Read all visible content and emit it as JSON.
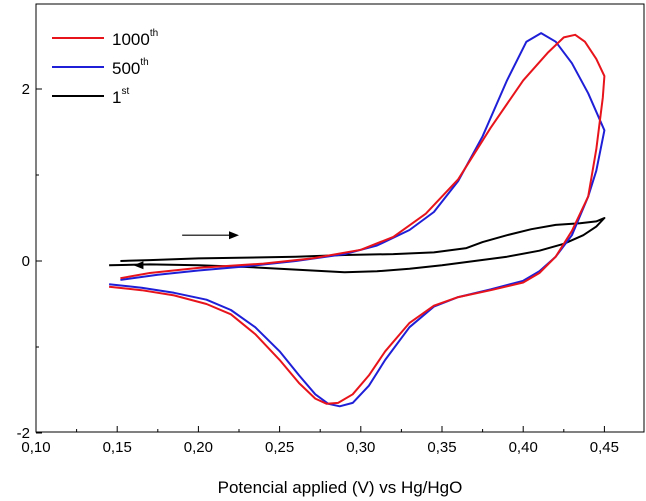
{
  "chart_data": {
    "type": "line",
    "title": "",
    "xlabel": "Potencial applied (V) vs Hg/HgO",
    "ylabel": "",
    "xlim": [
      0.1,
      0.46
    ],
    "ylim": [
      -2.0,
      2.75
    ],
    "x_ticks": [
      0.1,
      0.15,
      0.2,
      0.25,
      0.3,
      0.35,
      0.4,
      0.45
    ],
    "x_tick_labels": [
      "0,10",
      "0,15",
      "0,20",
      "0,25",
      "0,30",
      "0,35",
      "0,40",
      "0,45"
    ],
    "y_ticks": [
      -2,
      0,
      2
    ],
    "y_tick_labels": [
      "-2",
      "0",
      "2"
    ],
    "grid": false,
    "legend_position": "top-left",
    "annotations": [
      {
        "type": "arrow",
        "direction": "right",
        "from": [
          0.19,
          0.3
        ],
        "to": [
          0.225,
          0.3
        ]
      }
    ],
    "series": [
      {
        "name": "1000",
        "name_superscript": "th",
        "color": "#e8141c",
        "points": [
          [
            0.145,
            -0.3
          ],
          [
            0.165,
            -0.34
          ],
          [
            0.185,
            -0.4
          ],
          [
            0.205,
            -0.5
          ],
          [
            0.22,
            -0.62
          ],
          [
            0.235,
            -0.85
          ],
          [
            0.25,
            -1.15
          ],
          [
            0.262,
            -1.42
          ],
          [
            0.272,
            -1.6
          ],
          [
            0.279,
            -1.66
          ],
          [
            0.286,
            -1.65
          ],
          [
            0.295,
            -1.55
          ],
          [
            0.305,
            -1.33
          ],
          [
            0.315,
            -1.05
          ],
          [
            0.33,
            -0.72
          ],
          [
            0.345,
            -0.52
          ],
          [
            0.36,
            -0.42
          ],
          [
            0.38,
            -0.34
          ],
          [
            0.4,
            -0.25
          ],
          [
            0.41,
            -0.14
          ],
          [
            0.42,
            0.05
          ],
          [
            0.43,
            0.35
          ],
          [
            0.44,
            0.75
          ],
          [
            0.445,
            1.3
          ],
          [
            0.449,
            1.9
          ],
          [
            0.45,
            2.15
          ],
          [
            0.445,
            2.35
          ],
          [
            0.438,
            2.55
          ],
          [
            0.432,
            2.63
          ],
          [
            0.425,
            2.6
          ],
          [
            0.415,
            2.42
          ],
          [
            0.4,
            2.1
          ],
          [
            0.38,
            1.55
          ],
          [
            0.36,
            0.95
          ],
          [
            0.34,
            0.55
          ],
          [
            0.32,
            0.28
          ],
          [
            0.3,
            0.13
          ],
          [
            0.27,
            0.03
          ],
          [
            0.24,
            -0.03
          ],
          [
            0.2,
            -0.08
          ],
          [
            0.17,
            -0.14
          ],
          [
            0.152,
            -0.2
          ]
        ]
      },
      {
        "name": "500",
        "name_superscript": "th",
        "color": "#1f1fd8",
        "points": [
          [
            0.145,
            -0.27
          ],
          [
            0.165,
            -0.31
          ],
          [
            0.185,
            -0.37
          ],
          [
            0.205,
            -0.45
          ],
          [
            0.22,
            -0.57
          ],
          [
            0.235,
            -0.77
          ],
          [
            0.25,
            -1.05
          ],
          [
            0.262,
            -1.33
          ],
          [
            0.272,
            -1.55
          ],
          [
            0.28,
            -1.66
          ],
          [
            0.287,
            -1.69
          ],
          [
            0.295,
            -1.65
          ],
          [
            0.305,
            -1.45
          ],
          [
            0.315,
            -1.15
          ],
          [
            0.33,
            -0.77
          ],
          [
            0.345,
            -0.53
          ],
          [
            0.36,
            -0.42
          ],
          [
            0.38,
            -0.33
          ],
          [
            0.4,
            -0.23
          ],
          [
            0.41,
            -0.12
          ],
          [
            0.42,
            0.05
          ],
          [
            0.43,
            0.3
          ],
          [
            0.44,
            0.75
          ],
          [
            0.445,
            1.05
          ],
          [
            0.45,
            1.52
          ],
          [
            0.44,
            1.95
          ],
          [
            0.43,
            2.3
          ],
          [
            0.42,
            2.55
          ],
          [
            0.411,
            2.65
          ],
          [
            0.402,
            2.55
          ],
          [
            0.39,
            2.1
          ],
          [
            0.375,
            1.45
          ],
          [
            0.36,
            0.93
          ],
          [
            0.345,
            0.57
          ],
          [
            0.33,
            0.36
          ],
          [
            0.31,
            0.18
          ],
          [
            0.29,
            0.08
          ],
          [
            0.26,
            0.0
          ],
          [
            0.23,
            -0.06
          ],
          [
            0.2,
            -0.11
          ],
          [
            0.175,
            -0.16
          ],
          [
            0.152,
            -0.22
          ]
        ]
      },
      {
        "name": "1",
        "name_superscript": "st",
        "color": "#000000",
        "points": [
          [
            0.145,
            -0.05
          ],
          [
            0.17,
            -0.04
          ],
          [
            0.2,
            -0.05
          ],
          [
            0.23,
            -0.07
          ],
          [
            0.26,
            -0.1
          ],
          [
            0.29,
            -0.13
          ],
          [
            0.31,
            -0.12
          ],
          [
            0.33,
            -0.09
          ],
          [
            0.35,
            -0.05
          ],
          [
            0.37,
            0.0
          ],
          [
            0.39,
            0.05
          ],
          [
            0.41,
            0.12
          ],
          [
            0.425,
            0.2
          ],
          [
            0.437,
            0.3
          ],
          [
            0.445,
            0.4
          ],
          [
            0.45,
            0.5
          ],
          [
            0.445,
            0.46
          ],
          [
            0.435,
            0.44
          ],
          [
            0.42,
            0.42
          ],
          [
            0.405,
            0.37
          ],
          [
            0.39,
            0.3
          ],
          [
            0.375,
            0.22
          ],
          [
            0.365,
            0.15
          ],
          [
            0.345,
            0.1
          ],
          [
            0.32,
            0.08
          ],
          [
            0.29,
            0.07
          ],
          [
            0.26,
            0.05
          ],
          [
            0.23,
            0.04
          ],
          [
            0.2,
            0.03
          ],
          [
            0.17,
            0.01
          ],
          [
            0.152,
            0.0
          ]
        ]
      }
    ]
  }
}
